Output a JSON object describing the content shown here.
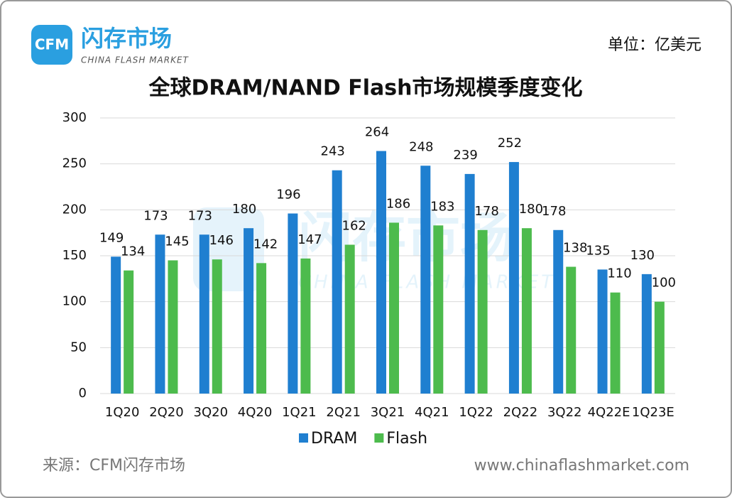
{
  "header": {
    "logo_mark": "CFM",
    "logo_name": "闪存市场",
    "logo_sub": "CHINA FLASH MARKET",
    "unit": "单位：亿美元"
  },
  "footer": {
    "source": "来源：CFM闪存市场",
    "website": "www.chinaflashmarket.com"
  },
  "chart_data": {
    "type": "bar",
    "title": "全球DRAM/NAND Flash市场规模季度变化",
    "categories": [
      "1Q20",
      "2Q20",
      "3Q20",
      "4Q20",
      "1Q21",
      "2Q21",
      "3Q21",
      "4Q21",
      "1Q22",
      "2Q22",
      "3Q22",
      "4Q22E",
      "1Q23E"
    ],
    "series": [
      {
        "name": "DRAM",
        "color": "#1f7fd0",
        "values": [
          149,
          173,
          173,
          180,
          196,
          243,
          264,
          248,
          239,
          252,
          178,
          135,
          130
        ]
      },
      {
        "name": "Flash",
        "color": "#4dbb4d",
        "values": [
          134,
          145,
          146,
          142,
          147,
          162,
          186,
          183,
          178,
          180,
          138,
          110,
          100
        ]
      }
    ],
    "ylim": [
      0,
      300
    ],
    "yticks": [
      0,
      50,
      100,
      150,
      200,
      250,
      300
    ],
    "grid": true,
    "legend": "bottom"
  }
}
